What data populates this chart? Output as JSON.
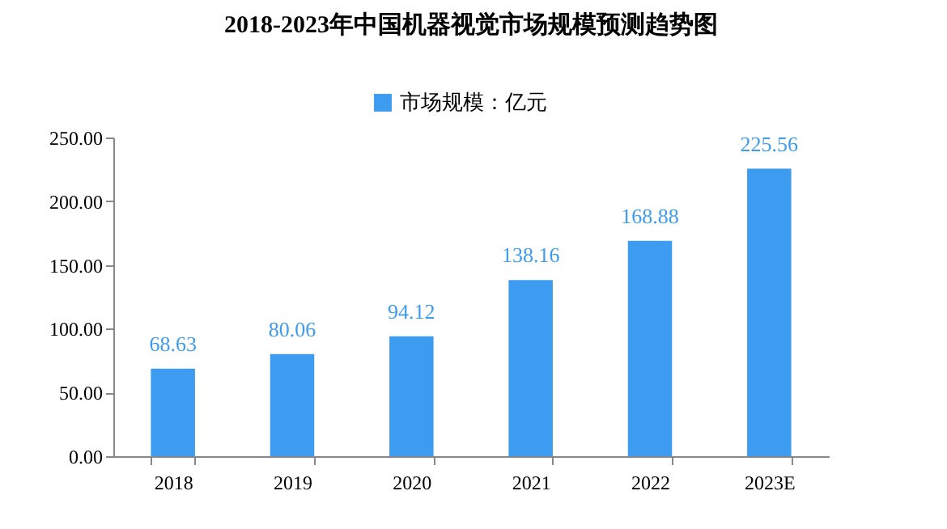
{
  "chart_data": {
    "type": "bar",
    "title": "2018-2023年中国机器视觉市场规模预测趋势图",
    "categories": [
      "2018",
      "2019",
      "2020",
      "2021",
      "2022",
      "2023E"
    ],
    "series": [
      {
        "name": "市场规模：亿元",
        "color": "#3d9cf0",
        "values": [
          68.63,
          80.06,
          94.12,
          138.16,
          168.88,
          225.56
        ]
      }
    ],
    "ylim": [
      0,
      250
    ],
    "yticks": [
      {
        "value": 0,
        "label": "0.00"
      },
      {
        "value": 50,
        "label": "50.00"
      },
      {
        "value": 100,
        "label": "100.00"
      },
      {
        "value": 150,
        "label": "150.00"
      },
      {
        "value": 200,
        "label": "200.00"
      },
      {
        "value": 250,
        "label": "250.00"
      }
    ],
    "data_labels": true,
    "legend": "top",
    "grid": false
  }
}
